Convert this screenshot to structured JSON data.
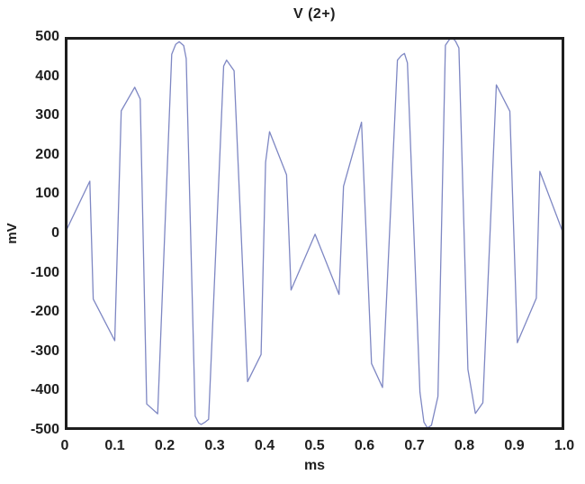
{
  "chart_data": {
    "type": "line",
    "title": "V (2+)",
    "xlabel": "ms",
    "ylabel": "mV",
    "xlim": [
      0,
      1.0
    ],
    "ylim": [
      -500,
      500
    ],
    "grid": false,
    "legend": false,
    "background_color": "#ffffff",
    "axis_color": "#1e1e1e",
    "line_color": "#7e87c3",
    "series_name": "V(2+)",
    "x_ticks": [
      {
        "value": 0,
        "label": "0"
      },
      {
        "value": 0.1,
        "label": "0.1"
      },
      {
        "value": 0.2,
        "label": "0.2"
      },
      {
        "value": 0.3,
        "label": "0.3"
      },
      {
        "value": 0.4,
        "label": "0.4"
      },
      {
        "value": 0.5,
        "label": "0.5"
      },
      {
        "value": 0.6,
        "label": "0.6"
      },
      {
        "value": 0.7,
        "label": "0.7"
      },
      {
        "value": 0.8,
        "label": "0.8"
      },
      {
        "value": 0.9,
        "label": "0.9"
      },
      {
        "value": 1.0,
        "label": "1.0"
      }
    ],
    "y_ticks": [
      {
        "value": 500,
        "label": "500"
      },
      {
        "value": 400,
        "label": "400"
      },
      {
        "value": 300,
        "label": "300"
      },
      {
        "value": 200,
        "label": "200"
      },
      {
        "value": 100,
        "label": "100"
      },
      {
        "value": 0,
        "label": "0"
      },
      {
        "value": -100,
        "label": "-100"
      },
      {
        "value": -200,
        "label": "-200"
      },
      {
        "value": -300,
        "label": "-300"
      },
      {
        "value": -400,
        "label": "-400"
      },
      {
        "value": -500,
        "label": "-500"
      }
    ],
    "points": [
      [
        0.0,
        0
      ],
      [
        0.05,
        133
      ],
      [
        0.057,
        -167
      ],
      [
        0.1,
        -273
      ],
      [
        0.113,
        312
      ],
      [
        0.14,
        372
      ],
      [
        0.151,
        342
      ],
      [
        0.164,
        -434
      ],
      [
        0.186,
        -459
      ],
      [
        0.214,
        456
      ],
      [
        0.222,
        481
      ],
      [
        0.229,
        488
      ],
      [
        0.238,
        478
      ],
      [
        0.243,
        445
      ],
      [
        0.261,
        -465
      ],
      [
        0.268,
        -482
      ],
      [
        0.273,
        -486
      ],
      [
        0.281,
        -480
      ],
      [
        0.288,
        -473
      ],
      [
        0.318,
        426
      ],
      [
        0.324,
        441
      ],
      [
        0.339,
        414
      ],
      [
        0.366,
        -377
      ],
      [
        0.393,
        -308
      ],
      [
        0.402,
        181
      ],
      [
        0.41,
        259
      ],
      [
        0.444,
        149
      ],
      [
        0.453,
        -144
      ],
      [
        0.501,
        -2
      ],
      [
        0.549,
        -155
      ],
      [
        0.558,
        120
      ],
      [
        0.594,
        283
      ],
      [
        0.614,
        -331
      ],
      [
        0.636,
        -392
      ],
      [
        0.666,
        441
      ],
      [
        0.674,
        453
      ],
      [
        0.68,
        458
      ],
      [
        0.686,
        434
      ],
      [
        0.711,
        -404
      ],
      [
        0.719,
        -480
      ],
      [
        0.726,
        -495
      ],
      [
        0.734,
        -488
      ],
      [
        0.747,
        -415
      ],
      [
        0.762,
        479
      ],
      [
        0.769,
        492
      ],
      [
        0.775,
        498
      ],
      [
        0.782,
        490
      ],
      [
        0.789,
        472
      ],
      [
        0.807,
        -346
      ],
      [
        0.822,
        -458
      ],
      [
        0.837,
        -431
      ],
      [
        0.864,
        378
      ],
      [
        0.891,
        311
      ],
      [
        0.906,
        -278
      ],
      [
        0.944,
        -165
      ],
      [
        0.951,
        158
      ],
      [
        0.998,
        0
      ]
    ]
  }
}
